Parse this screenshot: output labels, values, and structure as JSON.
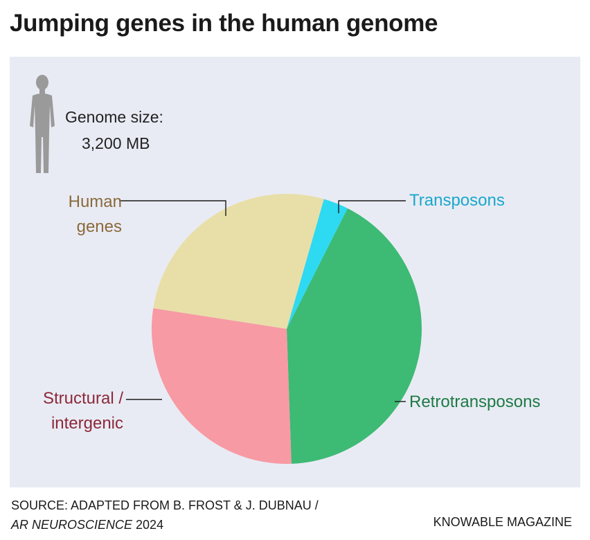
{
  "title": "Jumping genes in the human genome",
  "genome": {
    "label": "Genome size:",
    "value": "3,200 MB",
    "icon": "human-figure-icon"
  },
  "chart_data": {
    "type": "pie",
    "start_angle_deg": 16,
    "slices": [
      {
        "name": "Transposons",
        "value": 3,
        "color": "#2ed9f2",
        "label_color": "#1aa8cc"
      },
      {
        "name": "Retrotransposons",
        "value": 42,
        "color": "#3dba74",
        "label_color": "#1d7a45"
      },
      {
        "name": "Structural / intergenic",
        "value": 28,
        "color": "#f79aa4",
        "label_color": "#8c2838"
      },
      {
        "name": "Human genes",
        "value": 27,
        "color": "#e8dfa8",
        "label_color": "#8a6a3c"
      }
    ]
  },
  "labels": {
    "human_line1": "Human",
    "human_line2": "genes",
    "struct_line1": "Structural /",
    "struct_line2": "intergenic",
    "transposons": "Transposons",
    "retrotransposons": "Retrotransposons"
  },
  "source": {
    "line1": "SOURCE: ADAPTED FROM B. FROST & J. DUBNAU /",
    "line2_italic": "AR NEUROSCIENCE",
    "line2_year": " 2024"
  },
  "brand": "KNOWABLE MAGAZINE"
}
